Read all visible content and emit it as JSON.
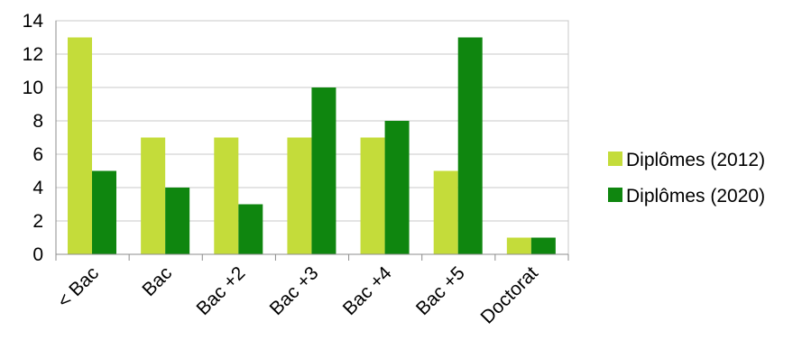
{
  "chart_data": {
    "type": "bar",
    "title": "",
    "xlabel": "",
    "ylabel": "",
    "categories": [
      "< Bac",
      "Bac",
      "Bac +2",
      "Bac +3",
      "Bac +4",
      "Bac +5",
      "Doctorat"
    ],
    "series": [
      {
        "name": "Diplômes (2012)",
        "color": "#c4dc3a",
        "values": [
          13,
          7,
          7,
          7,
          7,
          5,
          1
        ]
      },
      {
        "name": "Diplômes (2020)",
        "color": "#0f860f",
        "values": [
          5,
          4,
          3,
          10,
          8,
          13,
          1
        ]
      }
    ],
    "ylim": [
      0,
      14
    ],
    "yticks": [
      0,
      2,
      4,
      6,
      8,
      10,
      12,
      14
    ],
    "grid": true,
    "legend": "right"
  }
}
